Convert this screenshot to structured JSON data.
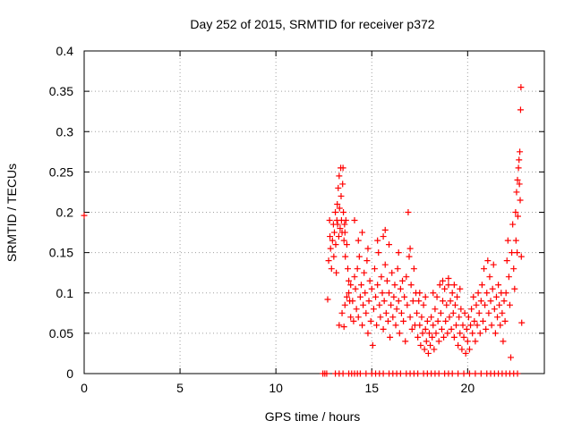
{
  "colors": {
    "series": "#ff0000",
    "grid": "#a0a0a0",
    "axis": "#000000"
  },
  "chart_data": {
    "type": "scatter",
    "title": "Day 252 of 2015, SRMTID for receiver p372",
    "xlabel": "GPS time / hours",
    "ylabel": "SRMTID / TECUs",
    "xlim": [
      0,
      24
    ],
    "ylim": [
      0,
      0.4
    ],
    "xticks": [
      0,
      5,
      10,
      15,
      20
    ],
    "xtick_labels": [
      "0",
      "5",
      "10",
      "15",
      "20"
    ],
    "yticks": [
      0,
      0.05,
      0.1,
      0.15,
      0.2,
      0.25,
      0.3,
      0.35,
      0.4
    ],
    "ytick_labels": [
      "0",
      "0.05",
      "0.1",
      "0.15",
      "0.2",
      "0.25",
      "0.3",
      "0.35",
      "0.4"
    ],
    "grid": true,
    "marker": "plus",
    "series": [
      {
        "name": "SRMTID",
        "points": [
          [
            0.0,
            0.196
          ],
          [
            12.45,
            0.0
          ],
          [
            12.55,
            0.0
          ],
          [
            12.65,
            0.0
          ],
          [
            13.1,
            0.0
          ],
          [
            13.3,
            0.0
          ],
          [
            13.5,
            0.0
          ],
          [
            13.8,
            0.0
          ],
          [
            13.95,
            0.0
          ],
          [
            14.1,
            0.0
          ],
          [
            14.25,
            0.0
          ],
          [
            14.4,
            0.0
          ],
          [
            14.7,
            0.0
          ],
          [
            15.0,
            0.0
          ],
          [
            15.2,
            0.0
          ],
          [
            15.4,
            0.0
          ],
          [
            15.6,
            0.0
          ],
          [
            15.9,
            0.0
          ],
          [
            16.1,
            0.0
          ],
          [
            16.3,
            0.0
          ],
          [
            16.5,
            0.0
          ],
          [
            16.8,
            0.0
          ],
          [
            17.0,
            0.0
          ],
          [
            17.2,
            0.0
          ],
          [
            17.4,
            0.0
          ],
          [
            17.7,
            0.0
          ],
          [
            17.9,
            0.0
          ],
          [
            18.1,
            0.0
          ],
          [
            18.3,
            0.0
          ],
          [
            18.5,
            0.0
          ],
          [
            18.8,
            0.0
          ],
          [
            19.0,
            0.0
          ],
          [
            19.2,
            0.0
          ],
          [
            19.5,
            0.0
          ],
          [
            19.8,
            0.0
          ],
          [
            20.1,
            0.0
          ],
          [
            20.4,
            0.0
          ],
          [
            20.7,
            0.0
          ],
          [
            21.0,
            0.0
          ],
          [
            21.2,
            0.0
          ],
          [
            21.4,
            0.0
          ],
          [
            21.6,
            0.0
          ],
          [
            21.8,
            0.0
          ],
          [
            22.0,
            0.0
          ],
          [
            22.2,
            0.0
          ],
          [
            22.4,
            0.0
          ],
          [
            22.6,
            0.0
          ],
          [
            12.7,
            0.092
          ],
          [
            12.75,
            0.14
          ],
          [
            12.8,
            0.19
          ],
          [
            12.82,
            0.17
          ],
          [
            12.85,
            0.155
          ],
          [
            12.9,
            0.13
          ],
          [
            12.95,
            0.165
          ],
          [
            13.0,
            0.185
          ],
          [
            13.02,
            0.145
          ],
          [
            13.05,
            0.175
          ],
          [
            13.1,
            0.2
          ],
          [
            13.12,
            0.16
          ],
          [
            13.15,
            0.125
          ],
          [
            13.18,
            0.19
          ],
          [
            13.2,
            0.21
          ],
          [
            13.22,
            0.185
          ],
          [
            13.25,
            0.23
          ],
          [
            13.28,
            0.17
          ],
          [
            13.3,
            0.245
          ],
          [
            13.32,
            0.205
          ],
          [
            13.35,
            0.18
          ],
          [
            13.38,
            0.255
          ],
          [
            13.4,
            0.22
          ],
          [
            13.42,
            0.19
          ],
          [
            13.45,
            0.175
          ],
          [
            13.48,
            0.235
          ],
          [
            13.5,
            0.255
          ],
          [
            13.52,
            0.2
          ],
          [
            13.55,
            0.165
          ],
          [
            13.58,
            0.185
          ],
          [
            13.6,
            0.175
          ],
          [
            13.62,
            0.145
          ],
          [
            13.65,
            0.19
          ],
          [
            13.7,
            0.16
          ],
          [
            13.75,
            0.13
          ],
          [
            13.8,
            0.115
          ],
          [
            13.85,
            0.09
          ],
          [
            13.9,
            0.07
          ],
          [
            13.3,
            0.06
          ],
          [
            13.45,
            0.075
          ],
          [
            13.55,
            0.058
          ],
          [
            13.6,
            0.085
          ],
          [
            13.7,
            0.095
          ],
          [
            13.8,
            0.1
          ],
          [
            13.9,
            0.11
          ],
          [
            14.0,
            0.09
          ],
          [
            14.05,
            0.065
          ],
          [
            14.1,
            0.12
          ],
          [
            14.15,
            0.105
          ],
          [
            14.2,
            0.08
          ],
          [
            14.25,
            0.13
          ],
          [
            14.3,
            0.07
          ],
          [
            14.35,
            0.145
          ],
          [
            14.4,
            0.095
          ],
          [
            14.45,
            0.11
          ],
          [
            14.5,
            0.06
          ],
          [
            14.55,
            0.085
          ],
          [
            14.6,
            0.125
          ],
          [
            14.65,
            0.1
          ],
          [
            14.7,
            0.075
          ],
          [
            14.75,
            0.14
          ],
          [
            14.8,
            0.05
          ],
          [
            14.85,
            0.09
          ],
          [
            14.9,
            0.115
          ],
          [
            14.95,
            0.065
          ],
          [
            15.0,
            0.105
          ],
          [
            15.05,
            0.035
          ],
          [
            15.1,
            0.08
          ],
          [
            15.15,
            0.13
          ],
          [
            15.2,
            0.095
          ],
          [
            15.25,
            0.06
          ],
          [
            15.3,
            0.11
          ],
          [
            15.35,
            0.15
          ],
          [
            15.4,
            0.085
          ],
          [
            15.45,
            0.07
          ],
          [
            15.5,
            0.12
          ],
          [
            15.55,
            0.1
          ],
          [
            15.6,
            0.055
          ],
          [
            15.65,
            0.09
          ],
          [
            15.7,
            0.135
          ],
          [
            15.75,
            0.075
          ],
          [
            15.8,
            0.115
          ],
          [
            15.85,
            0.065
          ],
          [
            15.9,
            0.1
          ],
          [
            15.95,
            0.045
          ],
          [
            16.0,
            0.085
          ],
          [
            16.05,
            0.125
          ],
          [
            16.1,
            0.07
          ],
          [
            16.15,
            0.095
          ],
          [
            16.2,
            0.11
          ],
          [
            16.25,
            0.06
          ],
          [
            16.3,
            0.08
          ],
          [
            16.35,
            0.13
          ],
          [
            16.4,
            0.09
          ],
          [
            16.45,
            0.05
          ],
          [
            16.5,
            0.105
          ],
          [
            16.55,
            0.075
          ],
          [
            16.6,
            0.115
          ],
          [
            16.65,
            0.065
          ],
          [
            16.7,
            0.095
          ],
          [
            16.75,
            0.04
          ],
          [
            16.8,
            0.12
          ],
          [
            16.85,
            0.085
          ],
          [
            16.9,
            0.2
          ],
          [
            16.95,
            0.145
          ],
          [
            17.0,
            0.07
          ],
          [
            17.05,
            0.11
          ],
          [
            17.1,
            0.055
          ],
          [
            17.15,
            0.09
          ],
          [
            17.2,
            0.13
          ],
          [
            17.25,
            0.06
          ],
          [
            17.3,
            0.1
          ],
          [
            14.1,
            0.19
          ],
          [
            14.3,
            0.165
          ],
          [
            14.5,
            0.175
          ],
          [
            14.8,
            0.155
          ],
          [
            15.3,
            0.165
          ],
          [
            15.6,
            0.17
          ],
          [
            15.7,
            0.178
          ],
          [
            15.9,
            0.16
          ],
          [
            16.4,
            0.15
          ],
          [
            17.0,
            0.155
          ],
          [
            17.35,
            0.075
          ],
          [
            17.4,
            0.045
          ],
          [
            17.45,
            0.09
          ],
          [
            17.5,
            0.06
          ],
          [
            17.55,
            0.035
          ],
          [
            17.6,
            0.07
          ],
          [
            17.65,
            0.05
          ],
          [
            17.7,
            0.085
          ],
          [
            17.75,
            0.03
          ],
          [
            17.8,
            0.055
          ],
          [
            17.85,
            0.04
          ],
          [
            17.9,
            0.065
          ],
          [
            17.95,
            0.025
          ],
          [
            18.0,
            0.05
          ],
          [
            18.05,
            0.035
          ],
          [
            18.1,
            0.07
          ],
          [
            18.15,
            0.045
          ],
          [
            18.2,
            0.06
          ],
          [
            18.25,
            0.03
          ],
          [
            18.3,
            0.08
          ],
          [
            18.35,
            0.05
          ],
          [
            18.4,
            0.095
          ],
          [
            18.45,
            0.065
          ],
          [
            18.5,
            0.04
          ],
          [
            18.55,
            0.11
          ],
          [
            18.6,
            0.075
          ],
          [
            18.65,
            0.055
          ],
          [
            18.7,
            0.09
          ],
          [
            18.75,
            0.045
          ],
          [
            18.8,
            0.105
          ],
          [
            18.85,
            0.065
          ],
          [
            18.9,
            0.085
          ],
          [
            18.95,
            0.05
          ],
          [
            19.0,
            0.11
          ],
          [
            19.05,
            0.07
          ],
          [
            19.1,
            0.09
          ],
          [
            19.15,
            0.055
          ],
          [
            19.2,
            0.1
          ],
          [
            19.25,
            0.075
          ],
          [
            19.3,
            0.045
          ],
          [
            19.35,
            0.085
          ],
          [
            19.4,
            0.06
          ],
          [
            19.45,
            0.095
          ],
          [
            19.5,
            0.035
          ],
          [
            19.55,
            0.07
          ],
          [
            19.6,
            0.05
          ],
          [
            19.65,
            0.08
          ],
          [
            19.7,
            0.03
          ],
          [
            19.75,
            0.06
          ],
          [
            19.8,
            0.045
          ],
          [
            19.85,
            0.075
          ],
          [
            19.9,
            0.025
          ],
          [
            19.95,
            0.055
          ],
          [
            20.0,
            0.04
          ],
          [
            20.05,
            0.07
          ],
          [
            20.1,
            0.03
          ],
          [
            20.15,
            0.06
          ],
          [
            17.5,
            0.1
          ],
          [
            17.8,
            0.095
          ],
          [
            18.2,
            0.1
          ],
          [
            18.7,
            0.115
          ],
          [
            19.0,
            0.118
          ],
          [
            19.3,
            0.11
          ],
          [
            19.6,
            0.105
          ],
          [
            20.2,
            0.08
          ],
          [
            20.25,
            0.05
          ],
          [
            20.3,
            0.095
          ],
          [
            20.35,
            0.065
          ],
          [
            20.4,
            0.04
          ],
          [
            20.45,
            0.085
          ],
          [
            20.5,
            0.06
          ],
          [
            20.55,
            0.1
          ],
          [
            20.6,
            0.075
          ],
          [
            20.65,
            0.05
          ],
          [
            20.7,
            0.09
          ],
          [
            20.75,
            0.11
          ],
          [
            20.8,
            0.065
          ],
          [
            20.85,
            0.13
          ],
          [
            20.9,
            0.085
          ],
          [
            20.95,
            0.055
          ],
          [
            21.0,
            0.1
          ],
          [
            21.05,
            0.14
          ],
          [
            21.1,
            0.075
          ],
          [
            21.15,
            0.12
          ],
          [
            21.2,
            0.09
          ],
          [
            21.25,
            0.06
          ],
          [
            21.3,
            0.105
          ],
          [
            21.35,
            0.135
          ],
          [
            21.4,
            0.08
          ],
          [
            21.45,
            0.05
          ],
          [
            21.5,
            0.095
          ],
          [
            21.55,
            0.07
          ],
          [
            21.6,
            0.11
          ],
          [
            21.65,
            0.085
          ],
          [
            21.7,
            0.06
          ],
          [
            21.75,
            0.1
          ],
          [
            21.8,
            0.075
          ],
          [
            21.85,
            0.04
          ],
          [
            21.9,
            0.09
          ],
          [
            21.95,
            0.065
          ],
          [
            22.0,
            0.1
          ],
          [
            22.05,
            0.14
          ],
          [
            22.1,
            0.165
          ],
          [
            22.15,
            0.12
          ],
          [
            22.2,
            0.085
          ],
          [
            22.25,
            0.02
          ],
          [
            22.3,
            0.15
          ],
          [
            22.35,
            0.185
          ],
          [
            22.4,
            0.13
          ],
          [
            22.45,
            0.105
          ],
          [
            22.5,
            0.2
          ],
          [
            22.52,
            0.165
          ],
          [
            22.55,
            0.225
          ],
          [
            22.58,
            0.15
          ],
          [
            22.6,
            0.24
          ],
          [
            22.62,
            0.195
          ],
          [
            22.65,
            0.255
          ],
          [
            22.68,
            0.265
          ],
          [
            22.7,
            0.235
          ],
          [
            22.72,
            0.275
          ],
          [
            22.74,
            0.215
          ],
          [
            22.76,
            0.327
          ],
          [
            22.78,
            0.355
          ],
          [
            22.8,
            0.145
          ],
          [
            22.82,
            0.063
          ]
        ]
      }
    ]
  }
}
